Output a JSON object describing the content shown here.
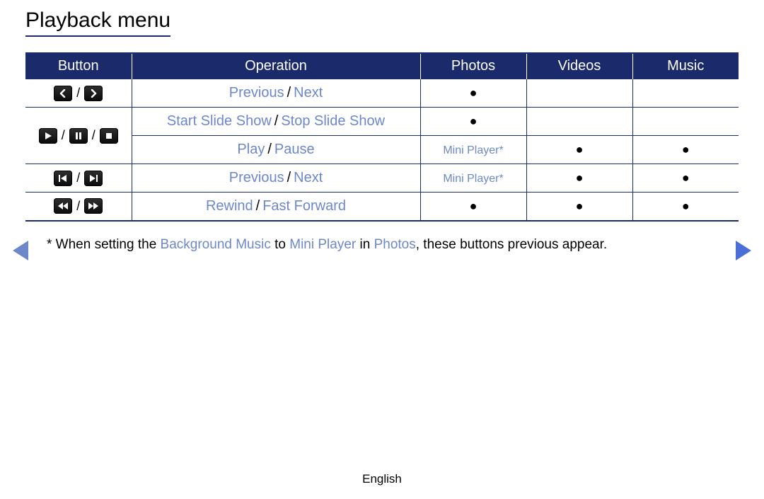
{
  "colors": {
    "navy": "#1b2a6b",
    "link": "#6d87c9",
    "button_bg_top": "#2f2f2f",
    "button_bg_bottom": "#0a0a0a",
    "white": "#ffffff",
    "black": "#000000"
  },
  "title": "Playback menu",
  "table": {
    "headers": {
      "button": "Button",
      "operation": "Operation",
      "photos": "Photos",
      "videos": "Videos",
      "music": "Music"
    },
    "rows": [
      {
        "icons": [
          "chevron-left",
          "chevron-right"
        ],
        "op_parts": [
          "Previous",
          "Next"
        ],
        "photos": "●",
        "videos": "",
        "music": ""
      },
      {
        "icons": [
          "play",
          "pause",
          "stop"
        ],
        "op_parts": [
          "Start Slide Show",
          "Stop Slide Show"
        ],
        "photos": "●",
        "videos": "",
        "music": "",
        "rowspan_button": 2
      },
      {
        "icons": null,
        "op_parts": [
          "Play",
          "Pause"
        ],
        "photos_text": "Mini Player*",
        "videos": "●",
        "music": "●"
      },
      {
        "icons": [
          "skip-back",
          "skip-fwd"
        ],
        "op_parts": [
          "Previous",
          "Next"
        ],
        "photos_text": "Mini Player*",
        "videos": "●",
        "music": "●"
      },
      {
        "icons": [
          "rewind",
          "fast-fwd"
        ],
        "op_parts": [
          "Rewind",
          "Fast Forward"
        ],
        "photos": "●",
        "videos": "●",
        "music": "●"
      }
    ]
  },
  "footnote": {
    "prefix": "* When setting the ",
    "bg": "Background Music",
    "mid1": " to ",
    "mini": "Mini Player",
    "mid2": " in ",
    "photos": "Photos",
    "suffix": ", these buttons previous appear."
  },
  "language": "English"
}
